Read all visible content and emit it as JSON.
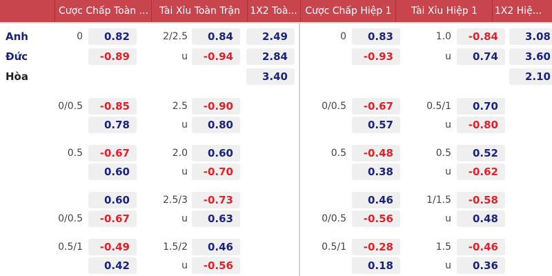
{
  "header": [
    "Cược Chấp Toàn ...",
    "Tài Xỉu Toàn Trận",
    "1X2 Toà...",
    "Cược Chấp Hiệp 1",
    "Tài Xỉu Hiệp 1",
    "1X2 Hiệ..."
  ],
  "colors": {
    "header_bg": "#c9454d",
    "positive": "#1a237e",
    "negative": "#e0222a",
    "home_team": "#1a237e",
    "draw": "#222222"
  },
  "rows": [
    {
      "team": "Anh",
      "hc": "0",
      "hc_odds": "0.82",
      "ou": "2/2.5",
      "ou_odds": "0.84",
      "x12": "2.49",
      "h1_hc": "0",
      "h1_hc_odds": "0.83",
      "h1_ou": "1.0",
      "h1_ou_odds": "-0.84",
      "h1_x12": "3.08"
    },
    {
      "team": "Đức",
      "hc": "",
      "hc_odds": "-0.89",
      "ou": "u",
      "ou_odds": "-0.94",
      "x12": "2.84",
      "h1_hc": "",
      "h1_hc_odds": "-0.93",
      "h1_ou": "u",
      "h1_ou_odds": "0.74",
      "h1_x12": "3.60"
    },
    {
      "team": "Hòa",
      "x12": "3.40",
      "h1_x12": "2.10"
    },
    {
      "hc": "0/0.5",
      "hc_odds": "-0.85",
      "ou": "2.5",
      "ou_odds": "-0.90",
      "h1_hc": "0/0.5",
      "h1_hc_odds": "-0.67",
      "h1_ou": "0.5/1",
      "h1_ou_odds": "0.70"
    },
    {
      "hc": "",
      "hc_odds": "0.78",
      "ou": "u",
      "ou_odds": "0.80",
      "h1_hc": "",
      "h1_hc_odds": "0.57",
      "h1_ou": "u",
      "h1_ou_odds": "-0.80"
    },
    {
      "hc": "0.5",
      "hc_odds": "-0.67",
      "ou": "2.0",
      "ou_odds": "0.60",
      "h1_hc": "0.5",
      "h1_hc_odds": "-0.48",
      "h1_ou": "0.5",
      "h1_ou_odds": "0.52"
    },
    {
      "hc": "",
      "hc_odds": "0.60",
      "ou": "u",
      "ou_odds": "-0.70",
      "h1_hc": "",
      "h1_hc_odds": "0.38",
      "h1_ou": "u",
      "h1_ou_odds": "-0.62"
    },
    {
      "hc": "",
      "hc_odds": "0.60",
      "ou": "2.5/3",
      "ou_odds": "-0.73",
      "h1_hc": "",
      "h1_hc_odds": "0.46",
      "h1_ou": "1/1.5",
      "h1_ou_odds": "-0.58"
    },
    {
      "hc": "0/0.5",
      "hc_odds": "-0.67",
      "ou": "u",
      "ou_odds": "0.63",
      "h1_hc": "0/0.5",
      "h1_hc_odds": "-0.56",
      "h1_ou": "u",
      "h1_ou_odds": "0.48"
    },
    {
      "hc": "0.5/1",
      "hc_odds": "-0.49",
      "ou": "1.5/2",
      "ou_odds": "0.46",
      "h1_hc": "0.5/1",
      "h1_hc_odds": "-0.28",
      "h1_ou": "1.5",
      "h1_ou_odds": "-0.46"
    },
    {
      "hc": "",
      "hc_odds": "0.42",
      "ou": "u",
      "ou_odds": "-0.56",
      "h1_hc": "",
      "h1_hc_odds": "0.18",
      "h1_ou": "u",
      "h1_ou_odds": "0.36"
    }
  ]
}
